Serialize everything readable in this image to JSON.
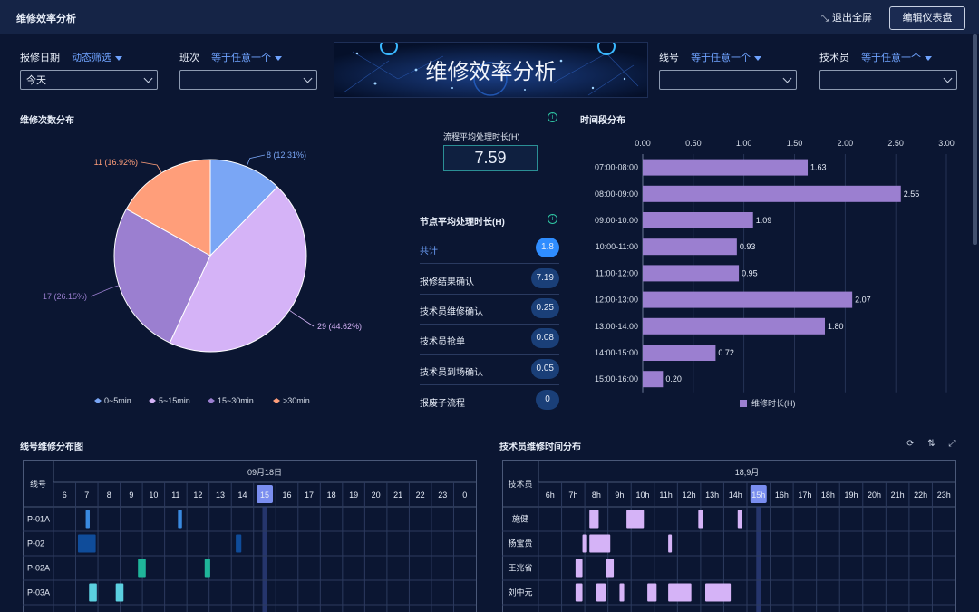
{
  "app": {
    "title": "维修效率分析",
    "exit_fullscreen": "退出全屏",
    "edit_dashboard": "编辑仪表盘"
  },
  "filters": {
    "date": {
      "label": "报修日期",
      "mode": "动态筛选",
      "value": "今天"
    },
    "shift": {
      "label": "班次",
      "mode": "等于任意一个",
      "value": ""
    },
    "line": {
      "label": "线号",
      "mode": "等于任意一个",
      "value": ""
    },
    "tech": {
      "label": "技术员",
      "mode": "等于任意一个",
      "value": ""
    }
  },
  "banner": {
    "title": "维修效率分析"
  },
  "pie": {
    "title": "维修次数分布",
    "labels": [
      "8 (12.31%)",
      "29 (44.62%)",
      "17 (26.15%)",
      "11 (16.92%)"
    ],
    "legend": [
      "0~5min",
      "5~15min",
      "15~30min",
      ">30min"
    ]
  },
  "metric": {
    "title": "流程平均处理时长(H)",
    "value": "7.59"
  },
  "nodes": {
    "title": "节点平均处理时长(H)",
    "items": [
      {
        "label": "共计",
        "value": "1.8"
      },
      {
        "label": "报修结果确认",
        "value": "7.19"
      },
      {
        "label": "技术员维修确认",
        "value": "0.25"
      },
      {
        "label": "技术员抢单",
        "value": "0.08"
      },
      {
        "label": "技术员到场确认",
        "value": "0.05"
      },
      {
        "label": "报废子流程",
        "value": "0"
      }
    ]
  },
  "bar": {
    "title": "时间段分布"
  },
  "line_grid": {
    "title": "线号维修分布图",
    "corner": "线号",
    "date": "09月18日",
    "hours": [
      "6",
      "7",
      "8",
      "9",
      "10",
      "11",
      "12",
      "13",
      "14",
      "15",
      "16",
      "17",
      "18",
      "19",
      "20",
      "21",
      "22",
      "23",
      "0"
    ],
    "highlight": "15",
    "rows": [
      "P-01A",
      "P-02",
      "P-02A",
      "P-03A"
    ]
  },
  "tech_grid": {
    "title": "技术员维修时间分布",
    "corner": "技术员",
    "date": "18,9月",
    "hours": [
      "6h",
      "7h",
      "8h",
      "9h",
      "10h",
      "11h",
      "12h",
      "13h",
      "14h",
      "15h",
      "16h",
      "17h",
      "18h",
      "19h",
      "20h",
      "21h",
      "22h",
      "23h"
    ],
    "highlight": "15h",
    "rows": [
      "施健",
      "杨宝贵",
      "王兆省",
      "刘中元"
    ]
  },
  "chart_data": [
    {
      "type": "pie",
      "title": "维修次数分布",
      "categories": [
        "0~5min",
        "5~15min",
        "15~30min",
        ">30min"
      ],
      "values": [
        8,
        29,
        17,
        11
      ],
      "percents": [
        12.31,
        44.62,
        26.15,
        16.92
      ],
      "colors": [
        "#7aa6f5",
        "#d5b3f7",
        "#9b7fd0",
        "#ff9e7a"
      ],
      "legend": "bottom"
    },
    {
      "type": "bar",
      "orientation": "horizontal",
      "title": "时间段分布",
      "categories": [
        "07:00-08:00",
        "08:00-09:00",
        "09:00-10:00",
        "10:00-11:00",
        "11:00-12:00",
        "12:00-13:00",
        "13:00-14:00",
        "14:00-15:00",
        "15:00-16:00"
      ],
      "series": [
        {
          "name": "维修时长(H)",
          "values": [
            1.63,
            2.55,
            1.09,
            0.93,
            0.95,
            2.07,
            1.8,
            0.72,
            0.2
          ],
          "color": "#9b7fd0"
        }
      ],
      "xticks": [
        "0.00",
        "0.50",
        "1.00",
        "1.50",
        "2.00",
        "2.50",
        "3.00"
      ],
      "xlim": [
        0,
        3
      ],
      "grid": true,
      "legend": "bottom"
    }
  ]
}
